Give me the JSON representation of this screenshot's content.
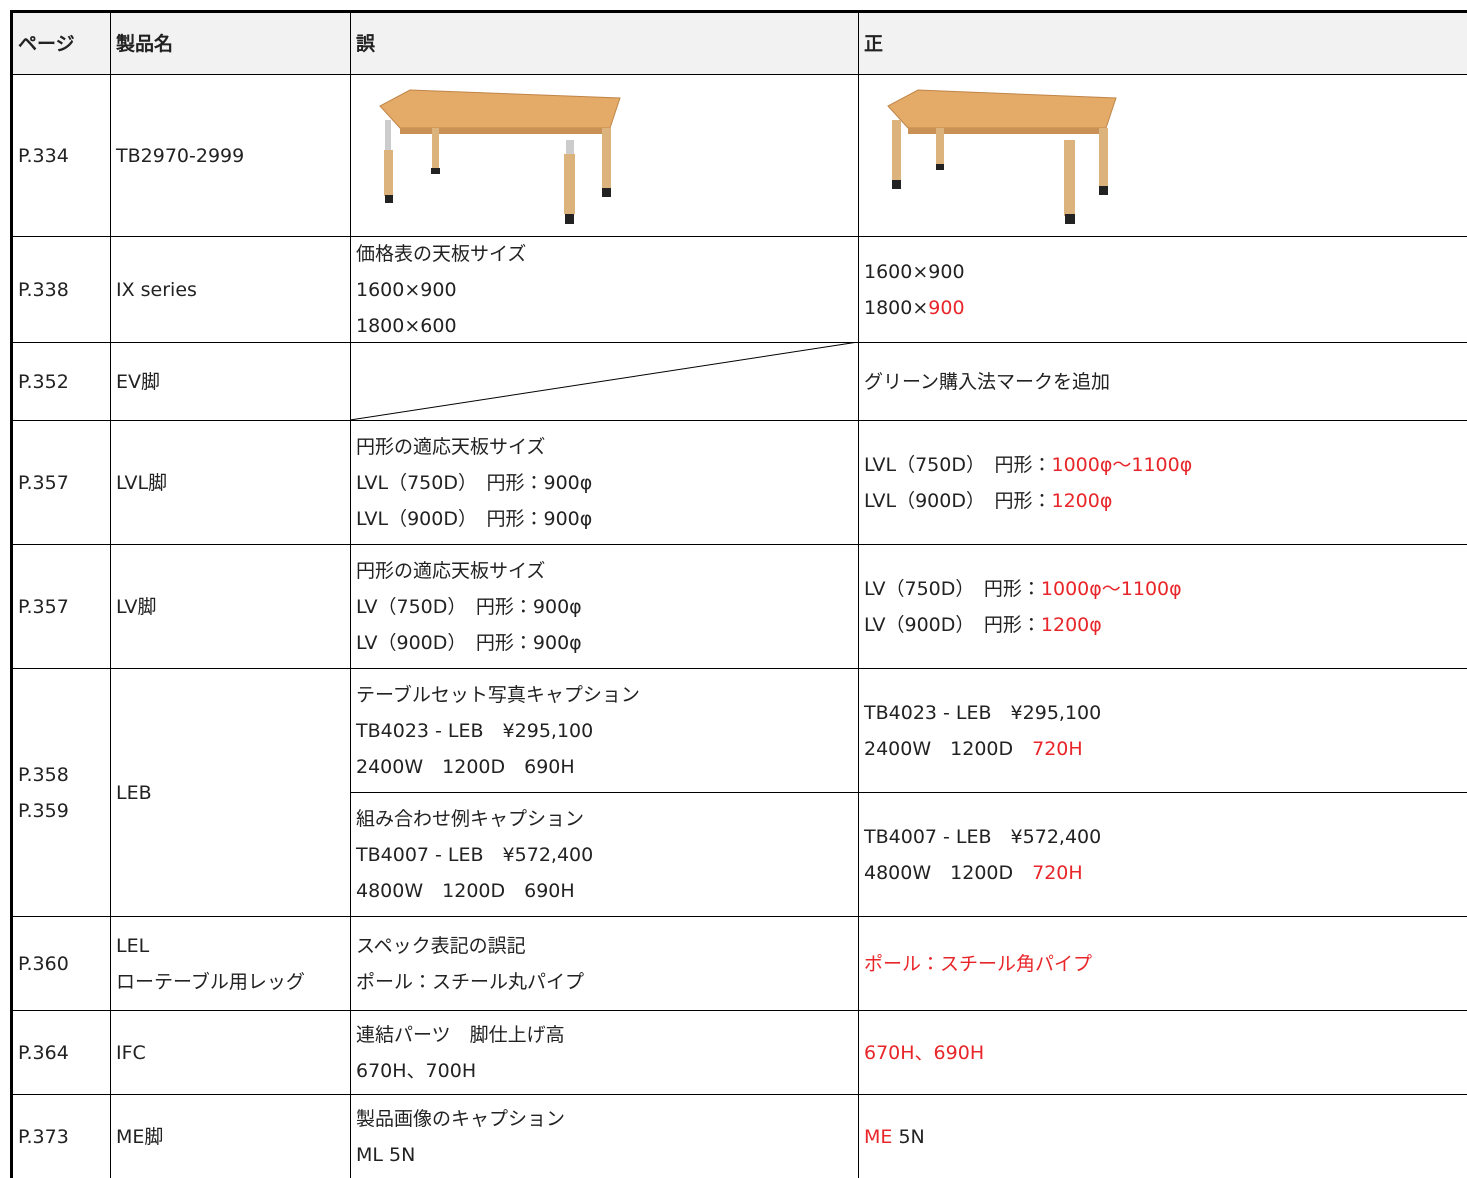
{
  "header": [
    "ページ",
    "製品名",
    "誤",
    "正"
  ],
  "rows": [
    {
      "page": [
        "P.334"
      ],
      "product": [
        "TB2970-2999"
      ],
      "entries": [
        {}
      ]
    },
    {
      "page": [
        "P.338"
      ],
      "product": [
        "IX series"
      ],
      "entries": [
        {
          "wrong": [
            [
              "価格表の天板サイズ"
            ],
            [
              "1600×900"
            ],
            [
              "1800×600"
            ]
          ],
          "correct": [
            [
              "1600×900"
            ],
            [
              "1800×",
              {
                "text": "900",
                "color": "#e8262a"
              }
            ]
          ]
        }
      ]
    },
    {
      "page": [
        "P.352"
      ],
      "product": [
        "EV脚"
      ],
      "entries": [
        {
          "correct": [
            [
              "グリーン購入法マークを追加"
            ]
          ]
        }
      ]
    },
    {
      "page": [
        "P.357"
      ],
      "product": [
        "LVL脚"
      ],
      "entries": [
        {
          "wrong": [
            [
              "円形の適応天板サイズ"
            ],
            [
              "LVL（750D）　円形：900φ"
            ],
            [
              "LVL（900D）　円形：900φ"
            ]
          ],
          "correct": [
            [
              "LVL（750D）　円形：",
              {
                "text": "1000φ～1100φ",
                "color": "#e8262a"
              }
            ],
            [
              "LVL（900D）　円形：",
              {
                "text": "1200φ",
                "color": "#e8262a"
              }
            ]
          ]
        }
      ]
    },
    {
      "page": [
        "P.357"
      ],
      "product": [
        "LV脚"
      ],
      "entries": [
        {
          "wrong": [
            [
              "円形の適応天板サイズ"
            ],
            [
              "LV（750D）　円形：900φ"
            ],
            [
              "LV（900D）　円形：900φ"
            ]
          ],
          "correct": [
            [
              "LV（750D）　円形：",
              {
                "text": "1000φ～1100φ",
                "color": "#e8262a"
              }
            ],
            [
              "LV（900D）　円形：",
              {
                "text": "1200φ",
                "color": "#e8262a"
              }
            ]
          ]
        }
      ]
    },
    {
      "page": [
        "P.358",
        "P.359"
      ],
      "product": [
        "LEB"
      ],
      "entries": [
        {
          "wrong": [
            [
              "テーブルセット写真キャプション"
            ],
            [
              "TB4023 - LEB　¥295,100"
            ],
            [
              "2400W　1200D　690H"
            ]
          ],
          "correct": [
            [
              "TB4023 - LEB　¥295,100"
            ],
            [
              "2400W　1200D　",
              {
                "text": "720H",
                "color": "#e8262a"
              }
            ]
          ]
        },
        {
          "wrong": [
            [
              "組み合わせ例キャプション"
            ],
            [
              "TB4007 - LEB　¥572,400"
            ],
            [
              "4800W　1200D　690H"
            ]
          ],
          "correct": [
            [
              "TB4007 - LEB　¥572,400"
            ],
            [
              "4800W　1200D　",
              {
                "text": "720H",
                "color": "#e8262a"
              }
            ]
          ]
        }
      ]
    },
    {
      "page": [
        "P.360"
      ],
      "product": [
        "LEL",
        "ローテーブル用レッグ"
      ],
      "entries": [
        {
          "wrong": [
            [
              "スペック表記の誤記"
            ],
            [
              "ポール：スチール丸パイプ"
            ]
          ],
          "correct": [
            [
              {
                "text": "ポール：スチール角パイプ",
                "color": "#e8262a"
              }
            ]
          ]
        }
      ]
    },
    {
      "page": [
        "P.364"
      ],
      "product": [
        "IFC"
      ],
      "entries": [
        {
          "wrong": [
            [
              "連結パーツ　脚仕上げ高"
            ],
            [
              "670H、700H"
            ]
          ],
          "correct": [
            [
              {
                "text": "670H、690H",
                "color": "#e8262a"
              }
            ]
          ]
        }
      ]
    },
    {
      "page": [
        "P.373"
      ],
      "product": [
        "ME脚"
      ],
      "entries": [
        {
          "wrong": [
            [
              "製品画像のキャプション"
            ],
            [
              "ML 5N"
            ]
          ],
          "correct": [
            [
              {
                "text": "ME",
                "color": "#e8262a"
              },
              " 5N"
            ]
          ]
        }
      ]
    }
  ]
}
